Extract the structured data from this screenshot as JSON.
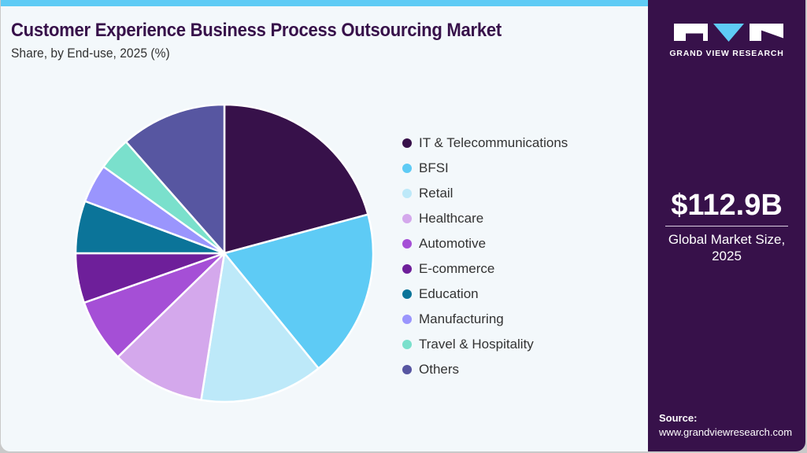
{
  "header": {
    "title": "Customer Experience Business Process Outsourcing Market",
    "subtitle": "Share, by End-use, 2025 (%)"
  },
  "sidebar": {
    "logo_text": "GRAND VIEW RESEARCH",
    "market_value": "$112.9B",
    "market_label_line1": "Global Market Size,",
    "market_label_line2": "2025",
    "source_label": "Source:",
    "source_url": "www.grandviewresearch.com"
  },
  "colors": {
    "brand_dark": "#37114a",
    "accent": "#5ecbf5",
    "background": "#f3f8fb"
  },
  "chart_data": {
    "type": "pie",
    "title": "Customer Experience Business Process Outsourcing Market",
    "subtitle": "Share, by End-use, 2025 (%)",
    "start_angle": "12 o'clock, clockwise",
    "legend_position": "right",
    "categories": [
      "IT & Telecommunications",
      "BFSI",
      "Retail",
      "Healthcare",
      "Automotive",
      "E-commerce",
      "Education",
      "Manufacturing",
      "Travel & Hospitality",
      "Others"
    ],
    "values": [
      20.8,
      18.3,
      13.4,
      10.2,
      6.9,
      5.4,
      5.7,
      4.2,
      3.6,
      11.5
    ],
    "colors": [
      "#37114a",
      "#5ecbf5",
      "#bde9f9",
      "#d4a8ec",
      "#a54fd6",
      "#6e1f9a",
      "#0b7499",
      "#9a95fd",
      "#7ae0cc",
      "#5756a1"
    ]
  }
}
